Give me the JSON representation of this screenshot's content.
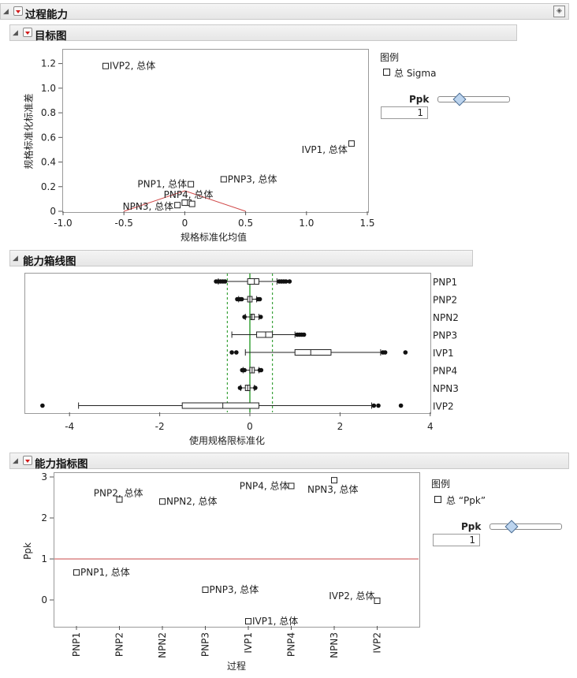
{
  "report": {
    "title": "过程能力"
  },
  "goal_plot": {
    "title": "目标图",
    "xlabel": "规格标准化均值",
    "ylabel": "规格标准化标准差",
    "x_ticks": [
      "-1.0",
      "-0.5",
      "0",
      "0.5",
      "1.0",
      "1.5"
    ],
    "y_ticks": [
      "0",
      "0.2",
      "0.4",
      "0.6",
      "0.8",
      "1.0",
      "1.2"
    ],
    "legend_title": "图例",
    "legend_item": "总 Sigma",
    "slider_label": "Ppk",
    "slider_value": "1",
    "points": [
      {
        "label": "IVP2, 总体",
        "x": -0.65,
        "y": 1.18
      },
      {
        "label": "IVP1, 总体",
        "x": 1.37,
        "y": 0.55
      },
      {
        "label": "PNP3, 总体",
        "x": 0.32,
        "y": 0.26
      },
      {
        "label": "PNP1, 总体",
        "x": 0.05,
        "y": 0.22
      },
      {
        "label": "PNP4, 总体",
        "x": 0.03,
        "y": 0.07
      },
      {
        "label": "NPN3, 总体",
        "x": -0.06,
        "y": 0.05
      },
      {
        "label": "",
        "x": 0.0,
        "y": 0.07
      },
      {
        "label": "",
        "x": 0.06,
        "y": 0.06
      }
    ]
  },
  "box_plot": {
    "title": "能力箱线图",
    "xlabel": "使用规格限标准化",
    "x_ticks": [
      "-4",
      "-2",
      "0",
      "2",
      "4"
    ],
    "categories": [
      "PNP1",
      "PNP2",
      "NPN2",
      "PNP3",
      "IVP1",
      "PNP4",
      "NPN3",
      "IVP2"
    ],
    "boxes": [
      {
        "name": "PNP1",
        "wlo": -0.7,
        "q1": -0.05,
        "med": 0.1,
        "q3": 0.2,
        "whi": 0.6,
        "out": [
          -0.75,
          -0.7,
          -0.65,
          -0.6,
          -0.55,
          0.65,
          0.7,
          0.75,
          0.8,
          0.88
        ]
      },
      {
        "name": "PNP2",
        "wlo": -0.25,
        "q1": -0.05,
        "med": 0.0,
        "q3": 0.05,
        "whi": 0.15,
        "out": [
          -0.28,
          -0.22,
          -0.18,
          0.18,
          0.22
        ]
      },
      {
        "name": "NPN2",
        "wlo": -0.1,
        "q1": 0.02,
        "med": 0.05,
        "q3": 0.1,
        "whi": 0.2,
        "out": [
          -0.12,
          0.24
        ]
      },
      {
        "name": "PNP3",
        "wlo": -0.4,
        "q1": 0.15,
        "med": 0.35,
        "q3": 0.5,
        "whi": 1.0,
        "out": [
          1.05,
          1.1,
          1.15,
          1.2
        ]
      },
      {
        "name": "IVP1",
        "wlo": -0.1,
        "q1": 1.0,
        "med": 1.35,
        "q3": 1.8,
        "whi": 2.9,
        "out": [
          -0.4,
          -0.3,
          2.95,
          3.0,
          3.45
        ]
      },
      {
        "name": "PNP4",
        "wlo": -0.15,
        "q1": 0.0,
        "med": 0.05,
        "q3": 0.1,
        "whi": 0.2,
        "out": [
          -0.17,
          -0.12,
          0.22,
          0.25
        ]
      },
      {
        "name": "NPN3",
        "wlo": -0.2,
        "q1": -0.1,
        "med": -0.05,
        "q3": 0.0,
        "whi": 0.1,
        "out": [
          -0.22,
          0.12
        ]
      },
      {
        "name": "IVP2",
        "wlo": -3.8,
        "q1": -1.5,
        "med": -0.6,
        "q3": 0.2,
        "whi": 2.7,
        "out": [
          -4.6,
          2.75,
          2.85,
          3.35
        ]
      }
    ],
    "spec_lines": [
      -0.5,
      0.5
    ],
    "target_line": 0
  },
  "index_plot": {
    "title": "能力指标图",
    "xlabel": "过程",
    "ylabel": "Ppk",
    "y_ticks": [
      "0",
      "1",
      "2",
      "3"
    ],
    "categories": [
      "PNP1",
      "PNP2",
      "NPN2",
      "PNP3",
      "IVP1",
      "PNP4",
      "NPN3",
      "IVP2"
    ],
    "legend_title": "图例",
    "legend_item": "总 “Ppk”",
    "slider_label": "Ppk",
    "slider_value": "1",
    "reference_line": 1,
    "points": [
      {
        "label": "PNP1, 总体",
        "cat": 0,
        "y": 0.67
      },
      {
        "label": "PNP2, 总体",
        "cat": 1,
        "y": 2.45
      },
      {
        "label": "NPN2, 总体",
        "cat": 2,
        "y": 2.4
      },
      {
        "label": "PNP3, 总体",
        "cat": 3,
        "y": 0.25
      },
      {
        "label": "IVP1, 总体",
        "cat": 4,
        "y": -0.52
      },
      {
        "label": "PNP4, 总体",
        "cat": 5,
        "y": 2.78
      },
      {
        "label": "NPN3, 总体",
        "cat": 6,
        "y": 2.92
      },
      {
        "label": "IVP2, 总体",
        "cat": 7,
        "y": -0.02
      }
    ]
  },
  "chart_data": [
    {
      "type": "scatter",
      "title": "目标图",
      "xlabel": "规格标准化均值",
      "ylabel": "规格标准化标准差",
      "xlim": [
        -1.0,
        1.5
      ],
      "ylim": [
        0,
        1.3
      ]
    },
    {
      "type": "box",
      "title": "能力箱线图",
      "xlabel": "使用规格限标准化",
      "xlim": [
        -4.8,
        4
      ]
    },
    {
      "type": "scatter",
      "title": "能力指标图",
      "xlabel": "过程",
      "ylabel": "Ppk",
      "ylim": [
        -0.55,
        3.05
      ]
    }
  ]
}
